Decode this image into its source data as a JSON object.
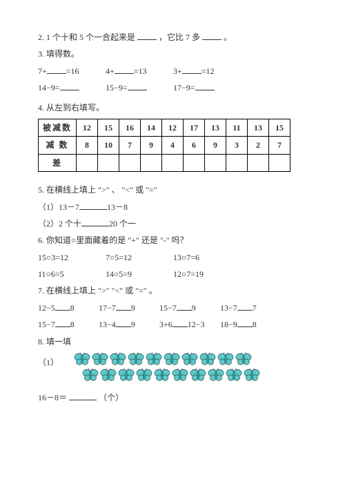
{
  "q2": {
    "text_a": "2. 1 个十和 5 个一合起来是",
    "text_b": "，它比 7 多",
    "text_c": "。"
  },
  "q3_title": "3. 填得数。",
  "q3_row1": {
    "a_l": "7+",
    "a_r": "=16",
    "b_l": "4+",
    "b_r": "=13",
    "c_l": "3+",
    "c_r": "=12"
  },
  "q3_row2": {
    "a": "14−9=",
    "b": "15−9=",
    "c": "17−9="
  },
  "q4_title": "4. 从左到右填写。",
  "table": {
    "r1_label": "被减数",
    "r1": [
      "12",
      "15",
      "16",
      "14",
      "12",
      "17",
      "13",
      "11",
      "13",
      "15"
    ],
    "r2_label": "减 数",
    "r2": [
      "8",
      "10",
      "7",
      "9",
      "4",
      "6",
      "9",
      "3",
      "2",
      "7"
    ],
    "r3_label": "差"
  },
  "q5_title": "5. 在横线上填上 \">\" 、 \"<\" 或 \"=\"",
  "q5_1a": "（1）13－7",
  "q5_1b": "13－8",
  "q5_2a": "（2）2 个十",
  "q5_2b": "20 个一",
  "q6_title": "6. 你知道○里面藏着的是 \"+\" 还是 \"-\" 吗？",
  "q6_r1": {
    "a": "15○3=12",
    "b": "7○5=12",
    "c": "13○7=6"
  },
  "q6_r2": {
    "a": "11○6=5",
    "b": "14○5=9",
    "c": "12○7=19"
  },
  "q7_title": "7. 在横线上填上 \">\" \"<\" 或 \"=\" 。",
  "q7_r1": {
    "a_l": "12−5",
    "a_r": "8",
    "b_l": "17−7",
    "b_r": "9",
    "c_l": "15−7",
    "c_r": "9",
    "d_l": "13−7",
    "d_r": "7"
  },
  "q7_r2": {
    "a_l": "15−7",
    "a_r": "8",
    "b_l": "13−4",
    "b_r": "9",
    "c_l": "3+6",
    "c_r": "12−3",
    "d_l": "18−9",
    "d_r": "8"
  },
  "q8_title": "8. 填一填",
  "q8_sub": "（1）",
  "q8_eq_l": "16－8＝",
  "q8_eq_r": "（个）",
  "butterfly": {
    "row1_count": 10,
    "row2_count": 10,
    "body_color": "#3aa0a0",
    "wing_color": "#5fc7c7",
    "outline": "#1a4d4d"
  }
}
